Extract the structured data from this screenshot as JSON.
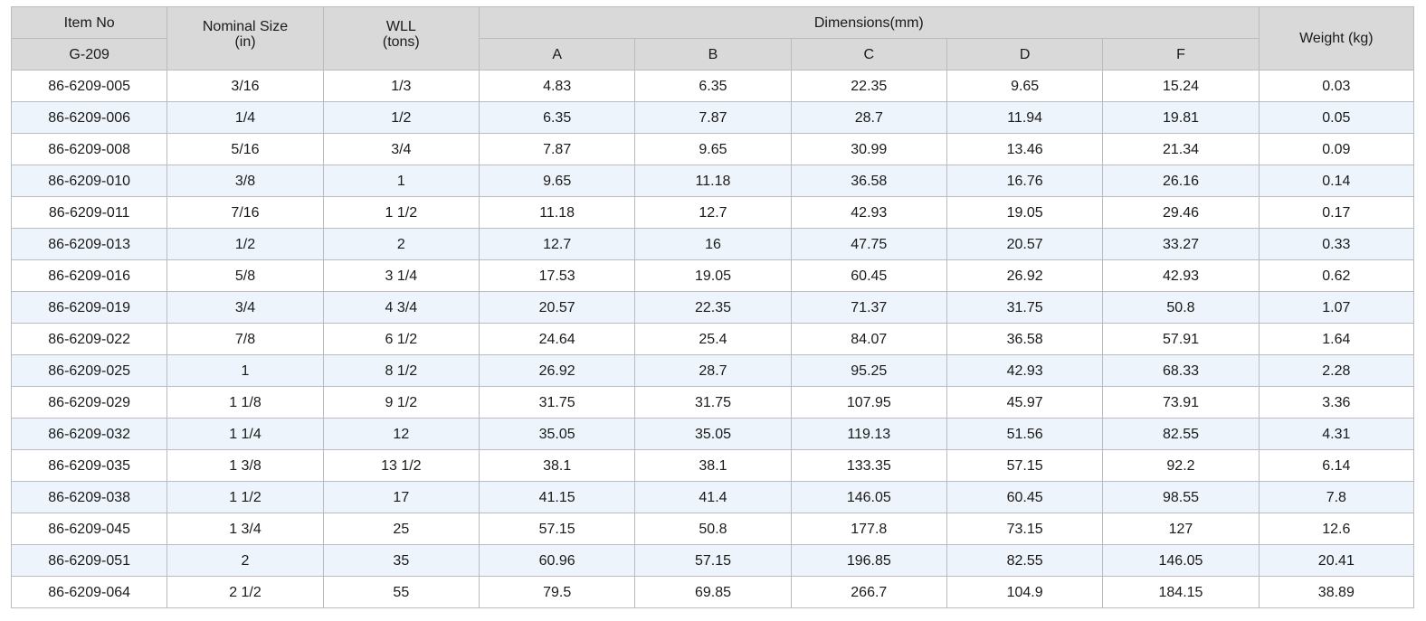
{
  "headers": {
    "item_no": "Item No",
    "series": "G-209",
    "nominal_size": "Nominal Size",
    "nominal_size_unit": "(in)",
    "wll": "WLL",
    "wll_unit": "(tons)",
    "dimensions": "Dimensions(mm)",
    "dim_a": "A",
    "dim_b": "B",
    "dim_c": "C",
    "dim_d": "D",
    "dim_f": "F",
    "weight": "Weight (kg)"
  },
  "rows": [
    [
      "86-6209-005",
      "3/16",
      "1/3",
      "4.83",
      "6.35",
      "22.35",
      "9.65",
      "15.24",
      "0.03"
    ],
    [
      "86-6209-006",
      "1/4",
      "1/2",
      "6.35",
      "7.87",
      "28.7",
      "11.94",
      "19.81",
      "0.05"
    ],
    [
      "86-6209-008",
      "5/16",
      "3/4",
      "7.87",
      "9.65",
      "30.99",
      "13.46",
      "21.34",
      "0.09"
    ],
    [
      "86-6209-010",
      "3/8",
      "1",
      "9.65",
      "11.18",
      "36.58",
      "16.76",
      "26.16",
      "0.14"
    ],
    [
      "86-6209-011",
      "7/16",
      "1 1/2",
      "11.18",
      "12.7",
      "42.93",
      "19.05",
      "29.46",
      "0.17"
    ],
    [
      "86-6209-013",
      "1/2",
      "2",
      "12.7",
      "16",
      "47.75",
      "20.57",
      "33.27",
      "0.33"
    ],
    [
      "86-6209-016",
      "5/8",
      "3 1/4",
      "17.53",
      "19.05",
      "60.45",
      "26.92",
      "42.93",
      "0.62"
    ],
    [
      "86-6209-019",
      "3/4",
      "4 3/4",
      "20.57",
      "22.35",
      "71.37",
      "31.75",
      "50.8",
      "1.07"
    ],
    [
      "86-6209-022",
      "7/8",
      "6 1/2",
      "24.64",
      "25.4",
      "84.07",
      "36.58",
      "57.91",
      "1.64"
    ],
    [
      "86-6209-025",
      "1",
      "8 1/2",
      "26.92",
      "28.7",
      "95.25",
      "42.93",
      "68.33",
      "2.28"
    ],
    [
      "86-6209-029",
      "1 1/8",
      "9 1/2",
      "31.75",
      "31.75",
      "107.95",
      "45.97",
      "73.91",
      "3.36"
    ],
    [
      "86-6209-032",
      "1 1/4",
      "12",
      "35.05",
      "35.05",
      "119.13",
      "51.56",
      "82.55",
      "4.31"
    ],
    [
      "86-6209-035",
      "1 3/8",
      "13 1/2",
      "38.1",
      "38.1",
      "133.35",
      "57.15",
      "92.2",
      "6.14"
    ],
    [
      "86-6209-038",
      "1 1/2",
      "17",
      "41.15",
      "41.4",
      "146.05",
      "60.45",
      "98.55",
      "7.8"
    ],
    [
      "86-6209-045",
      "1 3/4",
      "25",
      "57.15",
      "50.8",
      "177.8",
      "73.15",
      "127",
      "12.6"
    ],
    [
      "86-6209-051",
      "2",
      "35",
      "60.96",
      "57.15",
      "196.85",
      "82.55",
      "146.05",
      "20.41"
    ],
    [
      "86-6209-064",
      "2 1/2",
      "55",
      "79.5",
      "69.85",
      "266.7",
      "104.9",
      "184.15",
      "38.89"
    ]
  ],
  "colors": {
    "header_bg": "#d9d9d9",
    "row_alt_bg": "#eef4fb",
    "border": "#b9bcc0"
  }
}
